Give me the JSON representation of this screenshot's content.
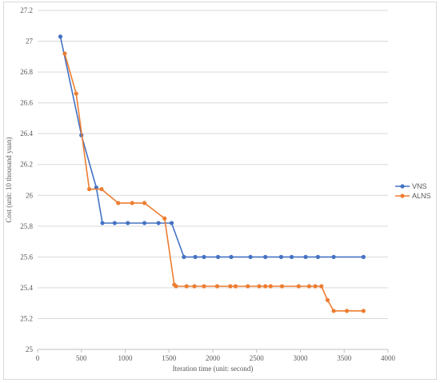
{
  "chart_data": {
    "type": "line",
    "title": "",
    "xlabel": "Iteration time (unit: second)",
    "ylabel": "Cost (unit: 10 thousand yuan)",
    "xlim": [
      0,
      4000
    ],
    "ylim": [
      25,
      27.2
    ],
    "x_ticks": [
      "0",
      "500",
      "1000",
      "1500",
      "2000",
      "2500",
      "3000",
      "3500",
      "4000"
    ],
    "y_ticks": [
      "25",
      "25.2",
      "25.4",
      "25.6",
      "25.8",
      "26",
      "26.2",
      "26.4",
      "26.6",
      "26.8",
      "27",
      "27.2"
    ],
    "grid": "horizontal",
    "legend_position": "right",
    "series": [
      {
        "name": "VNS",
        "color": "#4472c4",
        "points": [
          [
            260,
            27.03
          ],
          [
            500,
            26.39
          ],
          [
            670,
            26.05
          ],
          [
            740,
            25.82
          ],
          [
            880,
            25.82
          ],
          [
            1030,
            25.82
          ],
          [
            1220,
            25.82
          ],
          [
            1380,
            25.82
          ],
          [
            1530,
            25.82
          ],
          [
            1670,
            25.6
          ],
          [
            1800,
            25.6
          ],
          [
            1900,
            25.6
          ],
          [
            2060,
            25.6
          ],
          [
            2210,
            25.6
          ],
          [
            2430,
            25.6
          ],
          [
            2600,
            25.6
          ],
          [
            2780,
            25.6
          ],
          [
            2900,
            25.6
          ],
          [
            3060,
            25.6
          ],
          [
            3200,
            25.6
          ],
          [
            3380,
            25.6
          ],
          [
            3720,
            25.6
          ]
        ]
      },
      {
        "name": "ALNS",
        "color": "#ed7d31",
        "points": [
          [
            310,
            26.92
          ],
          [
            440,
            26.66
          ],
          [
            590,
            26.04
          ],
          [
            730,
            26.04
          ],
          [
            920,
            25.95
          ],
          [
            1080,
            25.95
          ],
          [
            1220,
            25.95
          ],
          [
            1450,
            25.85
          ],
          [
            1560,
            25.42
          ],
          [
            1580,
            25.41
          ],
          [
            1700,
            25.41
          ],
          [
            1790,
            25.41
          ],
          [
            1900,
            25.41
          ],
          [
            2050,
            25.41
          ],
          [
            2200,
            25.41
          ],
          [
            2260,
            25.41
          ],
          [
            2400,
            25.41
          ],
          [
            2530,
            25.41
          ],
          [
            2600,
            25.41
          ],
          [
            2660,
            25.41
          ],
          [
            2790,
            25.41
          ],
          [
            2980,
            25.41
          ],
          [
            3100,
            25.41
          ],
          [
            3170,
            25.41
          ],
          [
            3240,
            25.41
          ],
          [
            3310,
            25.32
          ],
          [
            3380,
            25.25
          ],
          [
            3530,
            25.25
          ],
          [
            3720,
            25.25
          ]
        ]
      }
    ]
  }
}
